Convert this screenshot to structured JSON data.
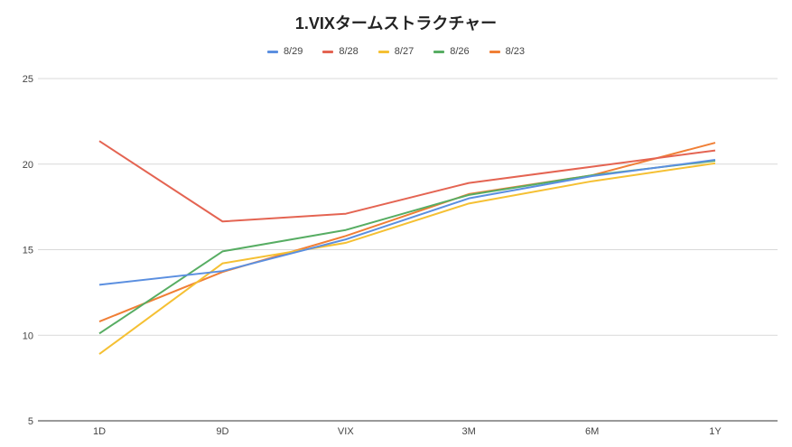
{
  "chart_data": {
    "type": "line",
    "title": "1.VIXタームストラクチャー",
    "xlabel": "",
    "ylabel": "",
    "categories": [
      "1D",
      "9D",
      "VIX",
      "3M",
      "6M",
      "1Y"
    ],
    "ylim": [
      5,
      25
    ],
    "yticks": [
      5,
      10,
      15,
      20,
      25
    ],
    "grid": true,
    "legend": "top-center",
    "series": [
      {
        "name": "8/29",
        "color": "#5b8fe0",
        "values": [
          12.95,
          13.75,
          15.6,
          18.0,
          19.3,
          20.25
        ]
      },
      {
        "name": "8/28",
        "color": "#e46452",
        "values": [
          21.35,
          16.65,
          17.1,
          18.9,
          19.85,
          20.8
        ]
      },
      {
        "name": "8/27",
        "color": "#f5c033",
        "values": [
          8.9,
          14.2,
          15.4,
          17.7,
          19.0,
          20.05
        ]
      },
      {
        "name": "8/26",
        "color": "#57ad63",
        "values": [
          10.1,
          14.9,
          16.15,
          18.2,
          19.35,
          20.2
        ]
      },
      {
        "name": "8/23",
        "color": "#f07f36",
        "values": [
          10.8,
          13.7,
          15.8,
          18.25,
          19.35,
          21.25
        ]
      }
    ]
  }
}
